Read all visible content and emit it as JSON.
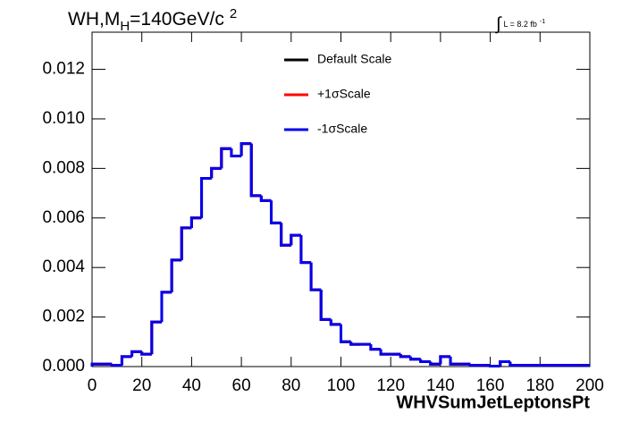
{
  "chart_data": {
    "type": "histogram",
    "title_parts": [
      "WH,M",
      "H",
      "=140GeV/c",
      "2"
    ],
    "annotation_parts": [
      "∫",
      "L = 8.2 fb",
      "-1"
    ],
    "x_label": "WHVSumJetLeptonsPt",
    "bins": [
      0,
      4,
      8,
      12,
      16,
      20,
      24,
      28,
      32,
      36,
      40,
      44,
      48,
      52,
      56,
      60,
      64,
      68,
      72,
      76,
      80,
      84,
      88,
      92,
      96,
      100,
      104,
      108,
      112,
      116,
      120,
      124,
      128,
      132,
      136,
      140,
      144,
      148,
      152,
      156,
      160,
      164,
      168,
      172,
      176,
      180,
      184,
      188,
      192,
      196,
      200
    ],
    "series": [
      {
        "name": "Default Scale",
        "color": "#000000",
        "values": [
          0.0001,
          0.0001,
          5e-05,
          0.0004,
          0.0006,
          0.0005,
          0.0018,
          0.003,
          0.0043,
          0.0056,
          0.006,
          0.0076,
          0.008,
          0.0088,
          0.0085,
          0.009,
          0.0069,
          0.0067,
          0.0058,
          0.0049,
          0.0053,
          0.0042,
          0.0031,
          0.0019,
          0.0017,
          0.001,
          0.0009,
          0.0009,
          0.0007,
          0.0005,
          0.0005,
          0.0004,
          0.0003,
          0.0002,
          0.0001,
          0.0004,
          0.0001,
          0.0001,
          5e-05,
          5e-05,
          2e-05,
          0.0002,
          5e-05,
          5e-05,
          5e-05,
          5e-05,
          5e-05,
          5e-05,
          5e-05,
          5e-05
        ]
      },
      {
        "name": "+1σScale",
        "color": "#ff0000",
        "values": [
          0.0001,
          0.0001,
          5e-05,
          0.0004,
          0.0006,
          0.0005,
          0.0018,
          0.003,
          0.0043,
          0.0056,
          0.006,
          0.0076,
          0.008,
          0.0088,
          0.0085,
          0.009,
          0.0069,
          0.0067,
          0.0058,
          0.0049,
          0.0053,
          0.0042,
          0.0031,
          0.0019,
          0.0017,
          0.001,
          0.0009,
          0.0009,
          0.0007,
          0.0005,
          0.0005,
          0.0004,
          0.0003,
          0.0002,
          0.0001,
          0.0004,
          0.0001,
          0.0001,
          5e-05,
          5e-05,
          2e-05,
          0.0002,
          5e-05,
          5e-05,
          5e-05,
          5e-05,
          5e-05,
          5e-05,
          5e-05,
          5e-05
        ]
      },
      {
        "name": "-1σScale",
        "color": "#0000ee",
        "values": [
          0.0001,
          0.0001,
          5e-05,
          0.0004,
          0.0006,
          0.0005,
          0.0018,
          0.003,
          0.0043,
          0.0056,
          0.006,
          0.0076,
          0.008,
          0.0088,
          0.0085,
          0.009,
          0.0069,
          0.0067,
          0.0058,
          0.0049,
          0.0053,
          0.0042,
          0.0031,
          0.0019,
          0.0017,
          0.001,
          0.0009,
          0.0009,
          0.0007,
          0.0005,
          0.0005,
          0.0004,
          0.0003,
          0.0002,
          0.0001,
          0.0004,
          0.0001,
          0.0001,
          5e-05,
          5e-05,
          2e-05,
          0.0002,
          5e-05,
          5e-05,
          5e-05,
          5e-05,
          5e-05,
          5e-05,
          5e-05,
          5e-05
        ]
      }
    ],
    "xlim": [
      0,
      200
    ],
    "xticks": [
      0,
      20,
      40,
      60,
      80,
      100,
      120,
      140,
      160,
      180,
      200
    ],
    "ylim": [
      0,
      0.0135
    ],
    "yticks": [
      {
        "value": 0,
        "label": "0.000"
      },
      {
        "value": 0.002,
        "label": "0.002"
      },
      {
        "value": 0.004,
        "label": "0.004"
      },
      {
        "value": 0.006,
        "label": "0.006"
      },
      {
        "value": 0.008,
        "label": "0.008"
      },
      {
        "value": 0.01,
        "label": "0.010"
      },
      {
        "value": 0.012,
        "label": "0.012"
      }
    ]
  }
}
